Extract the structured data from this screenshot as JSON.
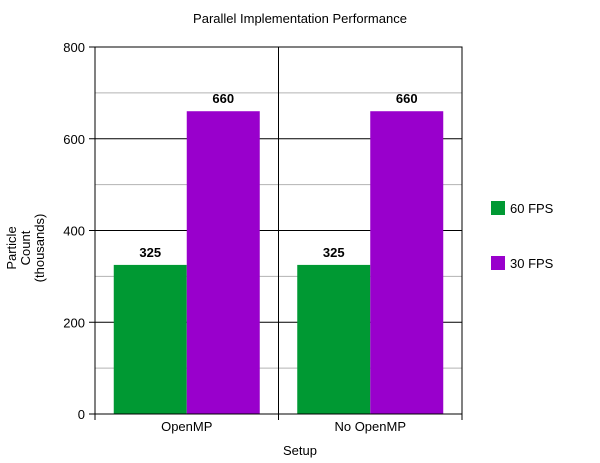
{
  "chart_data": {
    "type": "bar",
    "title": "Parallel Implementation Performance",
    "xlabel": "Setup",
    "ylabel_lines": [
      "Particle",
      "Count",
      "(thousands)"
    ],
    "categories": [
      "OpenMP",
      "No OpenMP"
    ],
    "series": [
      {
        "name": "60 FPS",
        "color": "#009933",
        "values": [
          325,
          325
        ]
      },
      {
        "name": "30 FPS",
        "color": "#9900cc",
        "values": [
          660,
          660
        ]
      }
    ],
    "ylim": [
      0,
      800
    ],
    "yticks": [
      0,
      200,
      400,
      600,
      800
    ],
    "minor_gridlines": [
      100,
      300,
      500,
      700
    ],
    "grid": true,
    "legend_position": "right"
  }
}
